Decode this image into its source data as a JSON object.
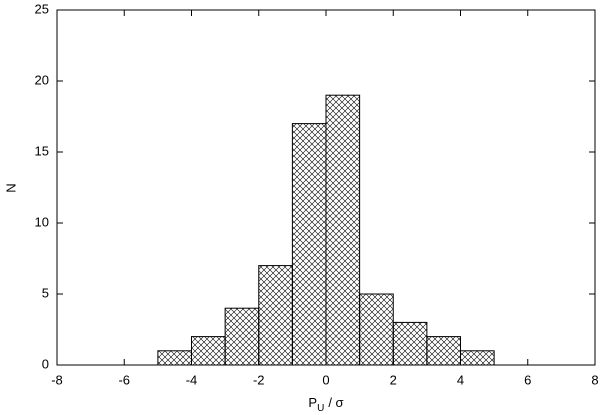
{
  "chart_data": {
    "type": "histogram",
    "bins": [
      -5,
      -4,
      -3,
      -2,
      -1,
      0,
      1,
      2,
      3,
      4,
      5
    ],
    "counts": [
      1,
      2,
      4,
      7,
      17,
      19,
      5,
      3,
      2,
      1
    ],
    "xlim": [
      -8,
      8
    ],
    "xticks": [
      -8,
      -6,
      -4,
      -2,
      0,
      2,
      4,
      6,
      8
    ],
    "ylim": [
      0,
      25
    ],
    "yticks": [
      0,
      5,
      10,
      15,
      20,
      25
    ],
    "y_label": "N",
    "x_label": [
      "P",
      "U",
      "/ σ"
    ],
    "color": "#000000",
    "hatch": "crosshatch",
    "grid": false
  }
}
